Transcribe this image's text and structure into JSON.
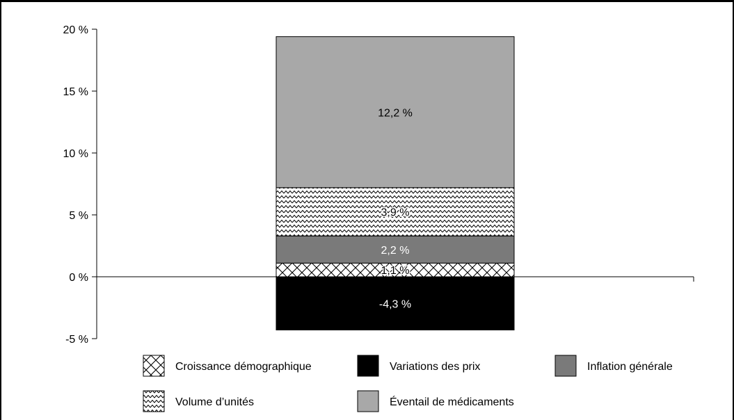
{
  "chart_data": {
    "type": "bar",
    "stacked": true,
    "categories": [
      ""
    ],
    "ylim": [
      -5,
      20
    ],
    "yticks": [
      -5,
      0,
      5,
      10,
      15,
      20
    ],
    "ytick_labels": [
      "-5 %",
      "0 %",
      "5 %",
      "10 %",
      "15 %",
      "20 %"
    ],
    "series": [
      {
        "name": "Variations des prix",
        "values": [
          -4.3
        ],
        "label": "-4,3 %",
        "fill": "#000000",
        "label_color": "#ffffff",
        "pattern": "solid"
      },
      {
        "name": "Croissance démographique",
        "values": [
          1.1
        ],
        "label": "1,1 %",
        "fill": "#ffffff",
        "label_color": "#000000",
        "pattern": "crosshatch"
      },
      {
        "name": "Inflation générale",
        "values": [
          2.2
        ],
        "label": "2,2 %",
        "fill": "#7a7a7a",
        "label_color": "#ffffff",
        "pattern": "solid"
      },
      {
        "name": "Volume d’unités",
        "values": [
          3.9
        ],
        "label": "3,9 %",
        "fill": "#ffffff",
        "label_color": "#000000",
        "pattern": "zigzag"
      },
      {
        "name": "Éventail de médicaments",
        "values": [
          12.2
        ],
        "label": "12,2 %",
        "fill": "#a8a8a8",
        "label_color": "#000000",
        "pattern": "solid"
      }
    ],
    "legend_order": [
      "Croissance démographique",
      "Variations des prix",
      "Inflation générale",
      "Volume d’unités",
      "Éventail de médicaments"
    ],
    "legend_position": "bottom",
    "grid": false
  }
}
